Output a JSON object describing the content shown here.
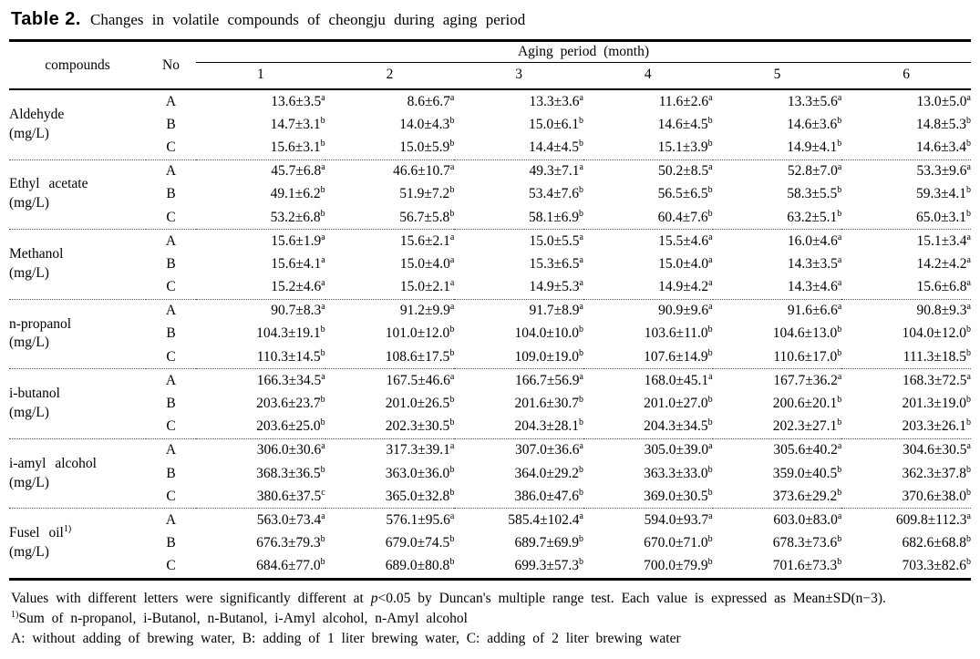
{
  "colors": {
    "background": "#ffffff",
    "text": "#000000"
  },
  "title": {
    "label": "Table 2.",
    "text": "Changes in volatile compounds of cheongju during aging period"
  },
  "table": {
    "header_compounds": "compounds",
    "header_no": "No",
    "header_aging": "Aging period (month)",
    "months": [
      "1",
      "2",
      "3",
      "4",
      "5",
      "6"
    ],
    "groups": [
      {
        "compound": "Aldehyde",
        "sup": "",
        "unit": "(mg/L)",
        "rows": [
          {
            "no": "A",
            "cells": [
              [
                "13.6±3.5",
                "a"
              ],
              [
                "8.6±6.7",
                "a"
              ],
              [
                "13.3±3.6",
                "a"
              ],
              [
                "11.6±2.6",
                "a"
              ],
              [
                "13.3±5.6",
                "a"
              ],
              [
                "13.0±5.0",
                "a"
              ]
            ]
          },
          {
            "no": "B",
            "cells": [
              [
                "14.7±3.1",
                "b"
              ],
              [
                "14.0±4.3",
                "b"
              ],
              [
                "15.0±6.1",
                "b"
              ],
              [
                "14.6±4.5",
                "b"
              ],
              [
                "14.6±3.6",
                "b"
              ],
              [
                "14.8±5.3",
                "b"
              ]
            ]
          },
          {
            "no": "C",
            "cells": [
              [
                "15.6±3.1",
                "b"
              ],
              [
                "15.0±5.9",
                "b"
              ],
              [
                "14.4±4.5",
                "b"
              ],
              [
                "15.1±3.9",
                "b"
              ],
              [
                "14.9±4.1",
                "b"
              ],
              [
                "14.6±3.4",
                "b"
              ]
            ]
          }
        ]
      },
      {
        "compound": "Ethyl acetate",
        "sup": "",
        "unit": "(mg/L)",
        "rows": [
          {
            "no": "A",
            "cells": [
              [
                "45.7±6.8",
                "a"
              ],
              [
                "46.6±10.7",
                "a"
              ],
              [
                "49.3±7.1",
                "a"
              ],
              [
                "50.2±8.5",
                "a"
              ],
              [
                "52.8±7.0",
                "a"
              ],
              [
                "53.3±9.6",
                "a"
              ]
            ]
          },
          {
            "no": "B",
            "cells": [
              [
                "49.1±6.2",
                "b"
              ],
              [
                "51.9±7.2",
                "b"
              ],
              [
                "53.4±7.6",
                "b"
              ],
              [
                "56.5±6.5",
                "b"
              ],
              [
                "58.3±5.5",
                "b"
              ],
              [
                "59.3±4.1",
                "b"
              ]
            ]
          },
          {
            "no": "C",
            "cells": [
              [
                "53.2±6.8",
                "b"
              ],
              [
                "56.7±5.8",
                "b"
              ],
              [
                "58.1±6.9",
                "b"
              ],
              [
                "60.4±7.6",
                "b"
              ],
              [
                "63.2±5.1",
                "b"
              ],
              [
                "65.0±3.1",
                "b"
              ]
            ]
          }
        ]
      },
      {
        "compound": "Methanol",
        "sup": "",
        "unit": "(mg/L)",
        "rows": [
          {
            "no": "A",
            "cells": [
              [
                "15.6±1.9",
                "a"
              ],
              [
                "15.6±2.1",
                "a"
              ],
              [
                "15.0±5.5",
                "a"
              ],
              [
                "15.5±4.6",
                "a"
              ],
              [
                "16.0±4.6",
                "a"
              ],
              [
                "15.1±3.4",
                "a"
              ]
            ]
          },
          {
            "no": "B",
            "cells": [
              [
                "15.6±4.1",
                "a"
              ],
              [
                "15.0±4.0",
                "a"
              ],
              [
                "15.3±6.5",
                "a"
              ],
              [
                "15.0±4.0",
                "a"
              ],
              [
                "14.3±3.5",
                "a"
              ],
              [
                "14.2±4.2",
                "a"
              ]
            ]
          },
          {
            "no": "C",
            "cells": [
              [
                "15.2±4.6",
                "a"
              ],
              [
                "15.0±2.1",
                "a"
              ],
              [
                "14.9±5.3",
                "a"
              ],
              [
                "14.9±4.2",
                "a"
              ],
              [
                "14.3±4.6",
                "a"
              ],
              [
                "15.6±6.8",
                "a"
              ]
            ]
          }
        ]
      },
      {
        "compound": "n-propanol",
        "sup": "",
        "unit": "(mg/L)",
        "rows": [
          {
            "no": "A",
            "cells": [
              [
                "90.7±8.3",
                "a"
              ],
              [
                "91.2±9.9",
                "a"
              ],
              [
                "91.7±8.9",
                "a"
              ],
              [
                "90.9±9.6",
                "a"
              ],
              [
                "91.6±6.6",
                "a"
              ],
              [
                "90.8±9.3",
                "a"
              ]
            ]
          },
          {
            "no": "B",
            "cells": [
              [
                "104.3±19.1",
                "b"
              ],
              [
                "101.0±12.0",
                "b"
              ],
              [
                "104.0±10.0",
                "b"
              ],
              [
                "103.6±11.0",
                "b"
              ],
              [
                "104.6±13.0",
                "b"
              ],
              [
                "104.0±12.0",
                "b"
              ]
            ]
          },
          {
            "no": "C",
            "cells": [
              [
                "110.3±14.5",
                "b"
              ],
              [
                "108.6±17.5",
                "b"
              ],
              [
                "109.0±19.0",
                "b"
              ],
              [
                "107.6±14.9",
                "b"
              ],
              [
                "110.6±17.0",
                "b"
              ],
              [
                "111.3±18.5",
                "b"
              ]
            ]
          }
        ]
      },
      {
        "compound": "i-butanol",
        "sup": "",
        "unit": "(mg/L)",
        "rows": [
          {
            "no": "A",
            "cells": [
              [
                "166.3±34.5",
                "a"
              ],
              [
                "167.5±46.6",
                "a"
              ],
              [
                "166.7±56.9",
                "a"
              ],
              [
                "168.0±45.1",
                "a"
              ],
              [
                "167.7±36.2",
                "a"
              ],
              [
                "168.3±72.5",
                "a"
              ]
            ]
          },
          {
            "no": "B",
            "cells": [
              [
                "203.6±23.7",
                "b"
              ],
              [
                "201.0±26.5",
                "b"
              ],
              [
                "201.6±30.7",
                "b"
              ],
              [
                "201.0±27.0",
                "b"
              ],
              [
                "200.6±20.1",
                "b"
              ],
              [
                "201.3±19.0",
                "b"
              ]
            ]
          },
          {
            "no": "C",
            "cells": [
              [
                "203.6±25.0",
                "b"
              ],
              [
                "202.3±30.5",
                "b"
              ],
              [
                "204.3±28.1",
                "b"
              ],
              [
                "204.3±34.5",
                "b"
              ],
              [
                "202.3±27.1",
                "b"
              ],
              [
                "203.3±26.1",
                "b"
              ]
            ]
          }
        ]
      },
      {
        "compound": "i-amyl alcohol",
        "sup": "",
        "unit": "(mg/L)",
        "rows": [
          {
            "no": "A",
            "cells": [
              [
                "306.0±30.6",
                "a"
              ],
              [
                "317.3±39.1",
                "a"
              ],
              [
                "307.0±36.6",
                "a"
              ],
              [
                "305.0±39.0",
                "a"
              ],
              [
                "305.6±40.2",
                "a"
              ],
              [
                "304.6±30.5",
                "a"
              ]
            ]
          },
          {
            "no": "B",
            "cells": [
              [
                "368.3±36.5",
                "b"
              ],
              [
                "363.0±36.0",
                "b"
              ],
              [
                "364.0±29.2",
                "b"
              ],
              [
                "363.3±33.0",
                "b"
              ],
              [
                "359.0±40.5",
                "b"
              ],
              [
                "362.3±37.8",
                "b"
              ]
            ]
          },
          {
            "no": "C",
            "cells": [
              [
                "380.6±37.5",
                "c"
              ],
              [
                "365.0±32.8",
                "b"
              ],
              [
                "386.0±47.6",
                "b"
              ],
              [
                "369.0±30.5",
                "b"
              ],
              [
                "373.6±29.2",
                "b"
              ],
              [
                "370.6±38.0",
                "b"
              ]
            ]
          }
        ]
      },
      {
        "compound": "Fusel oil",
        "sup": "1)",
        "unit": "(mg/L)",
        "rows": [
          {
            "no": "A",
            "cells": [
              [
                "563.0±73.4",
                "a"
              ],
              [
                "576.1±95.6",
                "a"
              ],
              [
                "585.4±102.4",
                "a"
              ],
              [
                "594.0±93.7",
                "a"
              ],
              [
                "603.0±83.0",
                "a"
              ],
              [
                "609.8±112.3",
                "a"
              ]
            ]
          },
          {
            "no": "B",
            "cells": [
              [
                "676.3±79.3",
                "b"
              ],
              [
                "679.0±74.5",
                "b"
              ],
              [
                "689.7±69.9",
                "b"
              ],
              [
                "670.0±71.0",
                "b"
              ],
              [
                "678.3±73.6",
                "b"
              ],
              [
                "682.6±68.8",
                "b"
              ]
            ]
          },
          {
            "no": "C",
            "cells": [
              [
                "684.6±77.0",
                "b"
              ],
              [
                "689.0±80.8",
                "b"
              ],
              [
                "699.3±57.3",
                "b"
              ],
              [
                "700.0±79.9",
                "b"
              ],
              [
                "701.6±73.3",
                "b"
              ],
              [
                "703.3±82.6",
                "b"
              ]
            ]
          }
        ]
      }
    ]
  },
  "footnotes": {
    "line1_pre": "Values with different letters were significantly different at ",
    "line1_italic": "p",
    "line1_post": "<0.05 by Duncan's multiple range test. Each value is expressed as Mean±SD(n−3).",
    "line2_sup": "1)",
    "line2_text": "Sum of n-propanol, i-Butanol, n-Butanol, i-Amyl alcohol, n-Amyl alcohol",
    "line3": "A: without adding of brewing water, B: adding of 1 liter brewing water, C: adding of 2 liter brewing water"
  }
}
